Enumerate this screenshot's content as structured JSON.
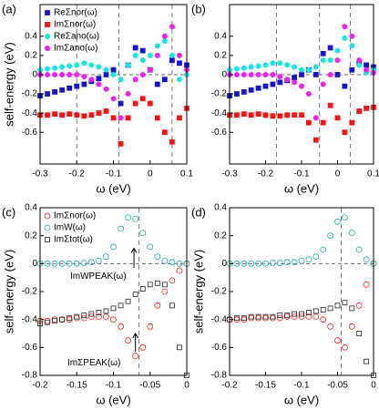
{
  "chart_data": [
    {
      "type": "scatter",
      "panel_label": "(a)",
      "xlabel": "ω (eV)",
      "ylabel": "self-energy (eV)",
      "x": [
        -0.3,
        -0.28,
        -0.26,
        -0.24,
        -0.22,
        -0.2,
        -0.18,
        -0.16,
        -0.14,
        -0.12,
        -0.1,
        -0.08,
        -0.06,
        -0.04,
        -0.02,
        0,
        0.02,
        0.04,
        0.06,
        0.08,
        0.1
      ],
      "xlim": [
        -0.3,
        0.1
      ],
      "xticks": [
        -0.3,
        -0.2,
        -0.1,
        0,
        0.1
      ],
      "ylim": [
        -0.93,
        0.73
      ],
      "yticks": [
        -0.6,
        -0.4,
        -0.2,
        0,
        0.2,
        0.4
      ],
      "vlines": [
        -0.2,
        -0.085,
        0.06
      ],
      "hlines": [
        0
      ],
      "legend": "upper left",
      "series": [
        {
          "name": "ReΣnor(ω)",
          "color": "#1414d2",
          "marker": "square",
          "filled": true,
          "values": [
            -0.22,
            -0.2,
            -0.18,
            -0.16,
            -0.14,
            -0.12,
            -0.1,
            -0.07,
            -0.04,
            0.0,
            0.05,
            -0.3,
            0.1,
            0.28,
            0.25,
            0.05,
            -0.1,
            -0.05,
            0.15,
            0.12,
            0.1
          ]
        },
        {
          "name": "ImΣnor(ω)",
          "color": "#ff1010",
          "marker": "square",
          "filled": true,
          "values": [
            -0.42,
            -0.42,
            -0.41,
            -0.42,
            -0.41,
            -0.42,
            -0.43,
            -0.42,
            -0.4,
            -0.38,
            -0.45,
            -0.72,
            -0.45,
            -0.3,
            -0.25,
            -0.3,
            -0.45,
            -0.6,
            -0.7,
            -0.45,
            -0.35
          ]
        },
        {
          "name": "ReΣano(ω)",
          "color": "#18e6e6",
          "marker": "circle",
          "filled": true,
          "values": [
            0.05,
            0.06,
            0.07,
            0.08,
            0.09,
            0.1,
            0.12,
            0.1,
            0.08,
            0.05,
            0.0,
            -0.05,
            0.1,
            0.2,
            0.15,
            0.2,
            0.3,
            0.35,
            0.2,
            -0.05,
            0.0
          ]
        },
        {
          "name": "ImΣano(ω)",
          "color": "#f020f0",
          "marker": "circle",
          "filled": true,
          "values": [
            0.0,
            0.0,
            0.0,
            0.0,
            0.0,
            0.0,
            -0.02,
            -0.05,
            -0.1,
            -0.15,
            -0.25,
            -0.45,
            -0.2,
            -0.05,
            0.0,
            0.05,
            0.2,
            0.4,
            0.5,
            0.2,
            0.05
          ]
        }
      ]
    },
    {
      "type": "scatter",
      "panel_label": "(b)",
      "xlabel": "ω (eV)",
      "x": [
        -0.3,
        -0.28,
        -0.26,
        -0.24,
        -0.22,
        -0.2,
        -0.18,
        -0.16,
        -0.14,
        -0.12,
        -0.1,
        -0.08,
        -0.06,
        -0.04,
        -0.02,
        0,
        0.02,
        0.04,
        0.06,
        0.08,
        0.1
      ],
      "xlim": [
        -0.3,
        0.1
      ],
      "xticks": [
        -0.3,
        -0.2,
        -0.1,
        0,
        0.1
      ],
      "ylim": [
        -0.93,
        0.73
      ],
      "yticks": [
        -0.6,
        -0.4,
        -0.2,
        0,
        0.2,
        0.4
      ],
      "vlines": [
        -0.17,
        -0.05,
        0.035
      ],
      "hlines": [
        0
      ],
      "series": [
        {
          "color": "#1414d2",
          "marker": "square",
          "filled": true,
          "values": [
            -0.22,
            -0.2,
            -0.18,
            -0.16,
            -0.14,
            -0.12,
            -0.1,
            -0.08,
            -0.06,
            -0.03,
            0.0,
            0.05,
            0.0,
            0.22,
            0.28,
            0.0,
            -0.12,
            0.05,
            0.12,
            0.1,
            0.08
          ]
        },
        {
          "color": "#ff1010",
          "marker": "square",
          "filled": true,
          "values": [
            -0.42,
            -0.42,
            -0.41,
            -0.42,
            -0.41,
            -0.42,
            -0.43,
            -0.43,
            -0.42,
            -0.42,
            -0.42,
            -0.5,
            -0.68,
            -0.5,
            -0.32,
            -0.45,
            -0.6,
            -0.5,
            -0.38,
            -0.35,
            -0.34
          ]
        },
        {
          "color": "#18e6e6",
          "marker": "circle",
          "filled": true,
          "values": [
            0.05,
            0.06,
            0.07,
            0.08,
            0.09,
            0.1,
            0.12,
            0.12,
            0.1,
            0.08,
            0.05,
            0.05,
            0.08,
            0.15,
            0.15,
            0.25,
            0.38,
            0.3,
            0.1,
            0.02,
            0.05
          ]
        },
        {
          "color": "#f020f0",
          "marker": "circle",
          "filled": true,
          "values": [
            0,
            0,
            0,
            0,
            0,
            0,
            0,
            -0.02,
            -0.05,
            -0.08,
            -0.12,
            -0.2,
            -0.45,
            -0.1,
            0.0,
            0.15,
            0.5,
            0.4,
            0.15,
            0.05,
            0.02
          ]
        }
      ]
    },
    {
      "type": "scatter",
      "panel_label": "(c)",
      "xlabel": "ω (eV)",
      "ylabel": "self-energy (eV)",
      "x": [
        -0.2,
        -0.19,
        -0.18,
        -0.17,
        -0.16,
        -0.15,
        -0.14,
        -0.13,
        -0.12,
        -0.11,
        -0.1,
        -0.09,
        -0.08,
        -0.07,
        -0.06,
        -0.05,
        -0.04,
        -0.03,
        -0.02,
        -0.01,
        0
      ],
      "xlim": [
        -0.2,
        0
      ],
      "xticks": [
        -0.2,
        -0.15,
        -0.1,
        -0.05,
        0
      ],
      "ylim": [
        -0.8,
        0.4
      ],
      "yticks": [
        -0.8,
        -0.6,
        -0.4,
        -0.2,
        0,
        0.2,
        0.4
      ],
      "vlines": [
        -0.065
      ],
      "hlines": [
        0
      ],
      "legend": "upper left",
      "annotations": [
        "ImWPEAK(ω)",
        "ImΣPEAK(ω)"
      ],
      "series": [
        {
          "name": "ImΣnor(ω)",
          "color": "#ff2020",
          "marker": "circle",
          "filled": false,
          "values": [
            -0.41,
            -0.41,
            -0.4,
            -0.4,
            -0.4,
            -0.39,
            -0.39,
            -0.38,
            -0.38,
            -0.38,
            -0.4,
            -0.45,
            -0.55,
            -0.66,
            -0.6,
            -0.45,
            -0.3,
            -0.2,
            -0.12,
            -0.05,
            0.0
          ]
        },
        {
          "name": "ImW(ω)",
          "color": "#20b0a0",
          "marker": "circle",
          "filled": false,
          "values": [
            0,
            0,
            0,
            0,
            0,
            0,
            0.005,
            0.01,
            0.02,
            0.05,
            0.12,
            0.25,
            0.33,
            0.32,
            0.22,
            0.12,
            0.05,
            0.02,
            0.01,
            0,
            0
          ]
        },
        {
          "name": "ImΣtot(ω)",
          "color": "#222222",
          "marker": "square",
          "filled": false,
          "values": [
            -0.43,
            -0.42,
            -0.41,
            -0.4,
            -0.39,
            -0.38,
            -0.37,
            -0.36,
            -0.35,
            -0.34,
            -0.32,
            -0.3,
            -0.27,
            -0.22,
            -0.18,
            -0.15,
            -0.14,
            -0.15,
            -0.3,
            -0.6,
            -0.8
          ]
        }
      ]
    },
    {
      "type": "scatter",
      "panel_label": "(d)",
      "xlabel": "ω (eV)",
      "ylabel": "self-energy (eV)",
      "x": [
        -0.2,
        -0.19,
        -0.18,
        -0.17,
        -0.16,
        -0.15,
        -0.14,
        -0.13,
        -0.12,
        -0.11,
        -0.1,
        -0.09,
        -0.08,
        -0.07,
        -0.06,
        -0.05,
        -0.04,
        -0.03,
        -0.02,
        -0.01,
        0
      ],
      "xlim": [
        -0.2,
        0
      ],
      "xticks": [
        -0.2,
        -0.15,
        -0.1,
        -0.05,
        0
      ],
      "ylim": [
        -0.8,
        0.4
      ],
      "yticks": [
        -0.8,
        -0.6,
        -0.4,
        -0.2,
        0,
        0.2,
        0.4
      ],
      "vlines": [
        -0.045
      ],
      "hlines": [
        0
      ],
      "series": [
        {
          "color": "#ff2020",
          "marker": "circle",
          "filled": false,
          "values": [
            -0.4,
            -0.4,
            -0.4,
            -0.39,
            -0.39,
            -0.39,
            -0.39,
            -0.39,
            -0.38,
            -0.38,
            -0.38,
            -0.38,
            -0.38,
            -0.4,
            -0.45,
            -0.55,
            -0.6,
            -0.45,
            -0.3,
            -0.15,
            0.0
          ]
        },
        {
          "color": "#20b0a0",
          "marker": "circle",
          "filled": false,
          "values": [
            0,
            0,
            0,
            0,
            0,
            0,
            0.005,
            0.005,
            0.01,
            0.01,
            0.02,
            0.03,
            0.05,
            0.1,
            0.2,
            0.3,
            0.33,
            0.22,
            0.1,
            0.03,
            0
          ]
        },
        {
          "color": "#222222",
          "marker": "square",
          "filled": false,
          "values": [
            -0.4,
            -0.39,
            -0.39,
            -0.38,
            -0.38,
            -0.38,
            -0.38,
            -0.37,
            -0.37,
            -0.36,
            -0.36,
            -0.35,
            -0.34,
            -0.33,
            -0.32,
            -0.3,
            -0.28,
            -0.32,
            -0.5,
            -0.7,
            -0.8
          ]
        }
      ]
    }
  ]
}
